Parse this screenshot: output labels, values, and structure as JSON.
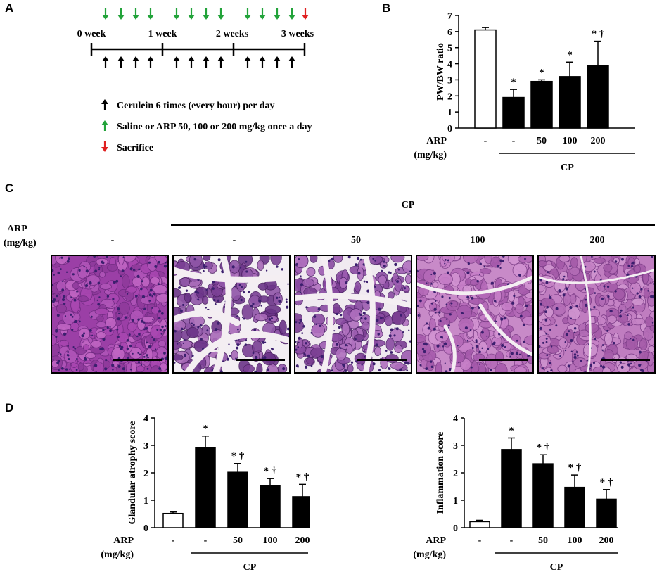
{
  "panels": {
    "a": "A",
    "b": "B",
    "c": "C",
    "d": "D"
  },
  "timeline": {
    "weeks": [
      "0 week",
      "1 week",
      "2 weeks",
      "3 weeks"
    ],
    "legend": [
      {
        "color": "#000000",
        "text": "Cerulein 6 times (every hour) per day"
      },
      {
        "color": "#22a33a",
        "text": "Saline or ARP 50, 100 or 200 mg/kg once a day"
      },
      {
        "color": "#e02020",
        "text": "Sacrifice"
      }
    ]
  },
  "chart_data": [
    {
      "id": "B",
      "type": "bar",
      "ylabel": "PW/BW ratio",
      "ylim": [
        0,
        7
      ],
      "yticks": [
        0,
        1,
        2,
        3,
        4,
        5,
        6,
        7
      ],
      "categories": [
        "-",
        "-",
        "50",
        "100",
        "200"
      ],
      "values": [
        6.1,
        1.9,
        2.9,
        3.2,
        3.9
      ],
      "errors": [
        0.15,
        0.5,
        0.1,
        0.9,
        1.5
      ],
      "annotations": [
        "",
        "*",
        "*",
        "*",
        "* †"
      ],
      "fills": [
        "#ffffff",
        "#000000",
        "#000000",
        "#000000",
        "#000000"
      ],
      "group_label": "CP",
      "row_label": "ARP",
      "row_sublabel": "(mg/kg)"
    },
    {
      "id": "D1",
      "type": "bar",
      "ylabel": "Glandular atrophy score",
      "ylim": [
        0,
        4
      ],
      "yticks": [
        0,
        1,
        2,
        3,
        4
      ],
      "categories": [
        "-",
        "-",
        "50",
        "100",
        "200"
      ],
      "values": [
        0.52,
        2.92,
        2.02,
        1.54,
        1.13
      ],
      "errors": [
        0.05,
        0.42,
        0.32,
        0.25,
        0.45
      ],
      "annotations": [
        "",
        "*",
        "* †",
        "* †",
        "* †"
      ],
      "fills": [
        "#ffffff",
        "#000000",
        "#000000",
        "#000000",
        "#000000"
      ],
      "group_label": "CP",
      "row_label": "ARP",
      "row_sublabel": "(mg/kg)"
    },
    {
      "id": "D2",
      "type": "bar",
      "ylabel": "Inflammation score",
      "ylim": [
        0,
        4
      ],
      "yticks": [
        0,
        1,
        2,
        3,
        4
      ],
      "categories": [
        "-",
        "-",
        "50",
        "100",
        "200"
      ],
      "values": [
        0.22,
        2.85,
        2.33,
        1.47,
        1.04
      ],
      "errors": [
        0.05,
        0.42,
        0.33,
        0.45,
        0.35
      ],
      "annotations": [
        "",
        "*",
        "* †",
        "* †",
        "* †"
      ],
      "fills": [
        "#ffffff",
        "#000000",
        "#000000",
        "#000000",
        "#000000"
      ],
      "group_label": "CP",
      "row_label": "ARP",
      "row_sublabel": "(mg/kg)"
    }
  ],
  "histology": {
    "group_label": "CP",
    "row_label": "ARP",
    "row_sublabel": "(mg/kg)",
    "columns": [
      "-",
      "-",
      "50",
      "100",
      "200"
    ]
  }
}
